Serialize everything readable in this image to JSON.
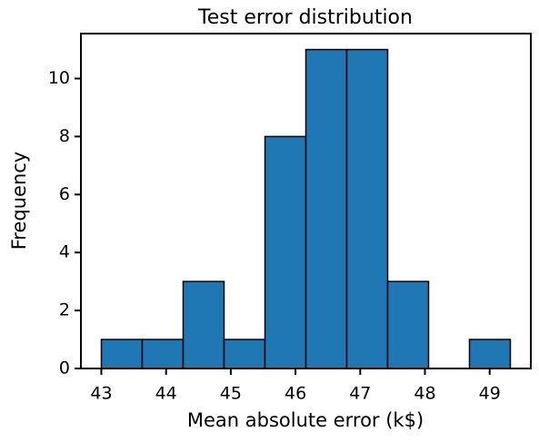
{
  "chart_data": {
    "type": "histogram",
    "title": "Test error distribution",
    "x_label": "Mean absolute error (k$)",
    "y_label": "Frequency",
    "bins": [
      43.0,
      43.632,
      44.264,
      44.896,
      45.528,
      46.16,
      46.792,
      47.424,
      48.056,
      48.688,
      49.32
    ],
    "counts": [
      1,
      1,
      3,
      1,
      8,
      11,
      11,
      3,
      0,
      1
    ],
    "color": "#1f77b4",
    "edge_color": "#000000",
    "xlim": [
      42.684,
      49.636
    ],
    "xticks": [
      43,
      44,
      45,
      46,
      47,
      48,
      49
    ],
    "ylim": [
      0,
      11.55
    ],
    "yticks": [
      0,
      2,
      4,
      6,
      8,
      10
    ],
    "grid": false
  }
}
